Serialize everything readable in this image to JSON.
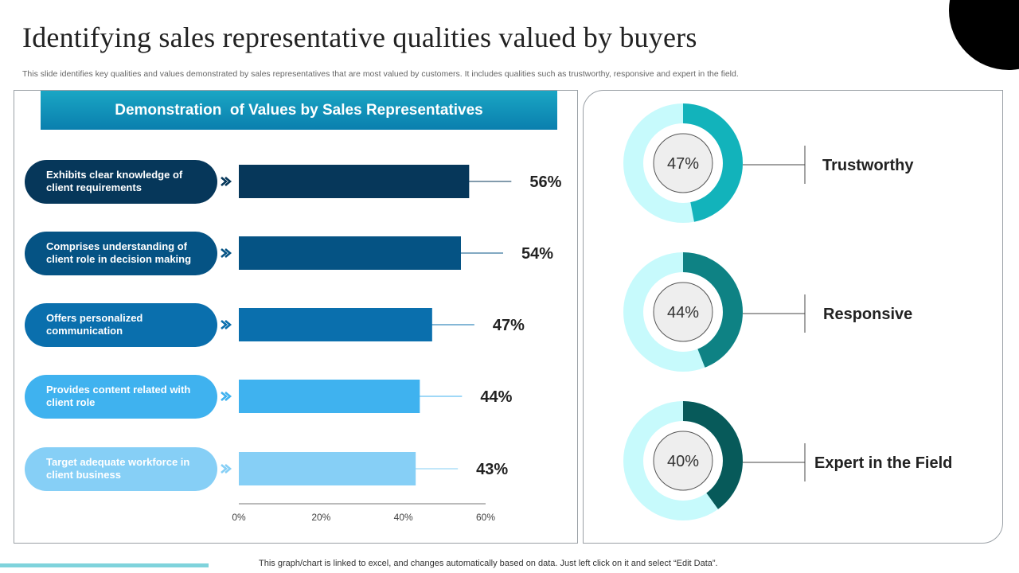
{
  "page": {
    "title": "Identifying sales representative qualities valued by buyers",
    "subtitle": "This slide identifies key qualities and values demonstrated by sales representatives that are most valued by customers. It includes qualities such as trustworthy, responsive and expert in the field.",
    "footer_note": "This graph/chart is linked to excel,  and changes automatically based on data. Just left click on it and select “Edit Data”."
  },
  "bar_panel": {
    "banner": "Demonstration  of Values by Sales Representatives",
    "items": [
      {
        "label": "Exhibits clear knowledge of client requirements",
        "value": 56,
        "value_label": "56%",
        "color": "#06375a"
      },
      {
        "label": "Comprises understanding of client role in decision making",
        "value": 54,
        "value_label": "54%",
        "color": "#055384"
      },
      {
        "label": "Offers personalized communication",
        "value": 47,
        "value_label": "47%",
        "color": "#0a6fad"
      },
      {
        "label": "Provides content related with client role",
        "value": 44,
        "value_label": "44%",
        "color": "#3fb2ef"
      },
      {
        "label": "Target adequate workforce in client business",
        "value": 43,
        "value_label": "43%",
        "color": "#86cff6"
      }
    ]
  },
  "donut_panel": {
    "items": [
      {
        "label": "Trustworthy",
        "value": 47,
        "value_label": "47%",
        "color": "#12b3bb"
      },
      {
        "label": "Responsive",
        "value": 44,
        "value_label": "44%",
        "color": "#0e8284"
      },
      {
        "label": "Expert in the Field",
        "value": 40,
        "value_label": "40%",
        "color": "#075a5a"
      }
    ],
    "track_color": "#c7fafc",
    "center_color": "#eeeeee"
  },
  "chart_data": [
    {
      "type": "bar",
      "orientation": "horizontal",
      "title": "Demonstration  of Values by Sales Representatives",
      "categories": [
        "Exhibits clear knowledge of client requirements",
        "Comprises understanding of client role in decision making",
        "Offers personalized communication",
        "Provides content related with client role",
        "Target adequate workforce in client business"
      ],
      "values": [
        56,
        54,
        47,
        44,
        43
      ],
      "data_labels": [
        "56%",
        "54%",
        "47%",
        "44%",
        "43%"
      ],
      "xlim": [
        0,
        60
      ],
      "x_ticks": [
        "0%",
        "20%",
        "40%",
        "60%"
      ],
      "grid": false
    },
    {
      "type": "pie",
      "variant": "donut",
      "categories": [
        "Trustworthy",
        "Responsive",
        "Expert in the Field"
      ],
      "values": [
        47,
        44,
        40
      ],
      "data_labels": [
        "47%",
        "44%",
        "40%"
      ]
    }
  ]
}
